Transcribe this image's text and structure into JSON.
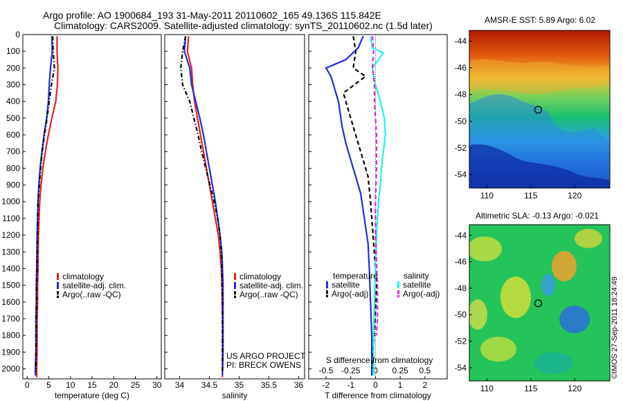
{
  "title_line1": "Argo profile: AO 1900684_193 31-May-2011 20110602_165 49.136S 115.842E",
  "title_line2": "Climatology: CARS2009. Satellite-adjusted climatology: synTS_20110602.nc (1.5d later)",
  "credit_line1": "US ARGO PROJECT",
  "credit_line2": "PI: BRECK OWENS",
  "stamp": "©IMOS 27-Sep-2011 18:24:49",
  "colors": {
    "climatology": "#e62020",
    "satellite": "#1a2ee0",
    "argo": "#000000",
    "salinity_satellite": "#22f0f0",
    "salinity_argo": "#e020e0"
  },
  "chart_data": [
    {
      "type": "line",
      "name": "temperature",
      "xlabel": "temperature (deg C)",
      "xlim": [
        -1,
        31
      ],
      "xticks": [
        "0",
        "5",
        "10",
        "15",
        "20",
        "25",
        "30"
      ],
      "xtick_values": [
        0,
        5,
        10,
        15,
        20,
        25,
        30
      ],
      "ylim": [
        2060,
        0
      ],
      "yticks": [
        "0",
        "100",
        "200",
        "300",
        "400",
        "500",
        "600",
        "700",
        "800",
        "900",
        "1000",
        "1100",
        "1200",
        "1300",
        "1400",
        "1500",
        "1600",
        "1700",
        "1800",
        "1900",
        "2000"
      ],
      "ytick_values": [
        0,
        100,
        200,
        300,
        400,
        500,
        600,
        700,
        800,
        900,
        1000,
        1100,
        1200,
        1300,
        1400,
        1500,
        1600,
        1700,
        1800,
        1900,
        2000
      ],
      "legend": [
        "climatology",
        "satellite-adj. clim.",
        "Argo(..raw -QC)"
      ],
      "series": [
        {
          "name": "climatology",
          "style": "solid",
          "x": [
            6.9,
            6.9,
            7.1,
            7.0,
            6.6,
            5.7,
            4.9,
            4.2,
            3.6,
            3.2,
            2.9,
            2.6,
            2.5,
            2.4,
            2.4,
            2.3,
            2.3,
            2.3,
            2.2,
            2.2
          ],
          "y": [
            10,
            100,
            200,
            300,
            400,
            500,
            600,
            700,
            800,
            900,
            1000,
            1200,
            1400,
            1500,
            1600,
            1700,
            1800,
            1900,
            2000,
            2050
          ]
        },
        {
          "name": "satellite-adj. clim.",
          "style": "solid",
          "x": [
            5.7,
            5.8,
            5.4,
            5.1,
            4.9,
            4.5,
            3.9,
            3.4,
            3.0,
            2.7,
            2.5,
            2.3,
            2.2,
            2.1,
            2.1,
            2.0,
            2.0,
            2.0,
            1.9,
            1.9
          ],
          "y": [
            10,
            100,
            200,
            300,
            400,
            500,
            600,
            700,
            800,
            900,
            1000,
            1200,
            1400,
            1500,
            1600,
            1700,
            1800,
            1900,
            2000,
            2040
          ]
        },
        {
          "name": "Argo(..raw -QC)",
          "style": "dashdot",
          "x": [
            5.9,
            6.0,
            6.3,
            5.6,
            5.1,
            4.6,
            4.0,
            3.5,
            3.1,
            2.8,
            2.5,
            2.4,
            2.3,
            2.2,
            2.2,
            2.1,
            2.1,
            2.0,
            2.0,
            2.0
          ],
          "y": [
            10,
            100,
            200,
            300,
            400,
            500,
            600,
            700,
            800,
            900,
            1000,
            1200,
            1400,
            1500,
            1600,
            1700,
            1800,
            1900,
            2000,
            2020
          ]
        }
      ]
    },
    {
      "type": "line",
      "name": "salinity",
      "xlabel": "salinity",
      "xlim": [
        33.75,
        36.1
      ],
      "xticks": [
        "34",
        "34.5",
        "35",
        "35.5",
        "36"
      ],
      "xtick_values": [
        34,
        34.5,
        35,
        35.5,
        36
      ],
      "ylim": [
        2060,
        0
      ],
      "legend": [
        "climatology",
        "satellite-adj. clim.",
        "Argo(..raw -QC)"
      ],
      "series": [
        {
          "name": "climatology",
          "style": "solid",
          "x": [
            34.15,
            34.13,
            34.2,
            34.22,
            34.25,
            34.3,
            34.35,
            34.4,
            34.45,
            34.5,
            34.55,
            34.6,
            34.65,
            34.68,
            34.7,
            34.71,
            34.72,
            34.72,
            34.72
          ],
          "y": [
            10,
            100,
            200,
            300,
            400,
            500,
            600,
            700,
            800,
            900,
            1000,
            1100,
            1200,
            1300,
            1400,
            1500,
            1700,
            1900,
            2050
          ]
        },
        {
          "name": "satellite-adj. clim.",
          "style": "solid",
          "x": [
            34.1,
            34.08,
            34.17,
            34.2,
            34.27,
            34.34,
            34.4,
            34.45,
            34.5,
            34.55,
            34.6,
            34.64,
            34.68,
            34.71,
            34.72,
            34.73,
            34.73,
            34.73,
            34.72
          ],
          "y": [
            10,
            100,
            200,
            300,
            400,
            500,
            600,
            700,
            800,
            900,
            1000,
            1100,
            1200,
            1300,
            1400,
            1500,
            1700,
            1900,
            2040
          ]
        },
        {
          "name": "Argo(..raw -QC)",
          "style": "dashdot",
          "x": [
            34.1,
            34.05,
            34.02,
            34.05,
            34.17,
            34.24,
            34.31,
            34.37,
            34.44,
            34.51,
            34.58,
            34.64,
            34.68,
            34.7,
            34.71,
            34.72,
            34.72,
            34.72
          ],
          "y": [
            10,
            100,
            200,
            300,
            400,
            500,
            600,
            700,
            800,
            900,
            1000,
            1100,
            1200,
            1300,
            1400,
            1600,
            1800,
            2020
          ]
        }
      ]
    },
    {
      "type": "line",
      "name": "difference",
      "xlabel": "T difference from climatology",
      "xlabel_top": "S difference from climatology",
      "xlim": [
        -2.7,
        2.9
      ],
      "xticks": [
        "-2",
        "-1",
        "0",
        "1",
        "2"
      ],
      "xtick_values": [
        -2,
        -1,
        0,
        1,
        2
      ],
      "s_xticks": [
        "-0.5",
        "-0.25",
        "0",
        "0.25",
        "0.5"
      ],
      "s_xtick_values": [
        -0.5,
        -0.25,
        0,
        0.25,
        0.5
      ],
      "s_xlim": [
        -0.675,
        0.725
      ],
      "ylim": [
        2060,
        0
      ],
      "legend_groups": [
        {
          "heading": "temperature",
          "items": [
            "satellite",
            "Argo(-adj)"
          ]
        },
        {
          "heading": "salinity",
          "items": [
            "satellite",
            "Argo(-adj)"
          ]
        }
      ],
      "series": [
        {
          "name": "temperature satellite",
          "style": "solid",
          "group": "temperature",
          "x": [
            -0.5,
            -0.7,
            -1.2,
            -2.0,
            -1.8,
            -1.5,
            -1.35,
            -1.2,
            -1.0,
            -0.8,
            -0.6,
            -0.5,
            -0.4,
            -0.3,
            -0.25,
            -0.2,
            -0.15,
            -0.15,
            -0.15
          ],
          "y": [
            10,
            80,
            150,
            200,
            250,
            400,
            550,
            650,
            750,
            850,
            950,
            1050,
            1150,
            1250,
            1400,
            1600,
            1800,
            1950,
            2040
          ]
        },
        {
          "name": "temperature Argo(-adj)",
          "style": "dashed",
          "group": "temperature",
          "x": [
            -0.9,
            -0.8,
            -0.9,
            -0.4,
            -1.3,
            -1.1,
            -0.9,
            -0.7,
            -0.5,
            -0.3,
            -0.2,
            -0.1,
            0.05,
            -0.05,
            -0.15
          ],
          "y": [
            10,
            100,
            200,
            250,
            350,
            450,
            550,
            650,
            750,
            850,
            1000,
            1200,
            1500,
            1800,
            2000
          ]
        },
        {
          "name": "salinity satellite",
          "style": "solid",
          "group": "salinity",
          "x": [
            -0.05,
            -0.03,
            0.08,
            -0.03,
            0.0,
            0.05,
            0.09,
            0.1,
            0.08,
            0.06,
            0.05,
            0.03,
            0.02,
            0.01,
            0.0,
            -0.01,
            -0.02,
            -0.02
          ],
          "y": [
            10,
            80,
            110,
            200,
            300,
            400,
            500,
            600,
            700,
            800,
            900,
            1000,
            1100,
            1200,
            1400,
            1600,
            1800,
            2040
          ]
        },
        {
          "name": "salinity Argo(-adj)",
          "style": "dashed",
          "group": "salinity",
          "x": [
            -0.03,
            -0.02,
            -0.03,
            -0.01,
            -0.01,
            0.0,
            0.01,
            0.01,
            0.0,
            0.0,
            0.02,
            0.02,
            0.01
          ],
          "y": [
            10,
            100,
            200,
            300,
            400,
            500,
            600,
            800,
            1000,
            1200,
            1500,
            1700,
            1800
          ]
        }
      ]
    },
    {
      "type": "heatmap",
      "name": "sst_map",
      "title": "AMSR-E SST: 5.89 Argo: 6.02",
      "xlim": [
        108,
        124
      ],
      "ylim": [
        -55,
        -43.2
      ],
      "xticks": [
        "110",
        "115",
        "120"
      ],
      "xtick_values": [
        110,
        115,
        120
      ],
      "yticks": [
        "-44",
        "-46",
        "-48",
        "-50",
        "-52",
        "-54"
      ],
      "ytick_values": [
        -44,
        -46,
        -48,
        -50,
        -52,
        -54
      ],
      "marker": {
        "lon": 115.842,
        "lat": -49.136
      }
    },
    {
      "type": "heatmap",
      "name": "sla_map",
      "title": "Altimetric SLA: -0.13 Argo: -0.021",
      "xlim": [
        108,
        124
      ],
      "ylim": [
        -55,
        -43.2
      ],
      "xticks": [
        "110",
        "115",
        "120"
      ],
      "xtick_values": [
        110,
        115,
        120
      ],
      "yticks": [
        "-44",
        "-46",
        "-48",
        "-50",
        "-52",
        "-54"
      ],
      "ytick_values": [
        -44,
        -46,
        -48,
        -50,
        -52,
        -54
      ],
      "marker": {
        "lon": 115.842,
        "lat": -49.136
      }
    }
  ]
}
